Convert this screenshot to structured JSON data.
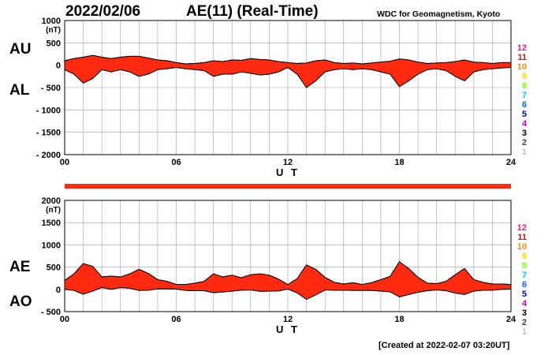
{
  "header": {
    "date": "2022/02/06",
    "title": "AE(11) (Real-Time)",
    "source": "WDC for Geomagnetism, Kyoto"
  },
  "footer": {
    "created": "[Created at 2022-02-07 03:20UT]"
  },
  "colors": {
    "fill": "#ff2a10",
    "outline": "#000000",
    "grid": "#a0a0a0",
    "station_levels": [
      "#ff1493",
      "#ee0000",
      "#ff8c00",
      "#ffd700",
      "#7fff00",
      "#00c8ff",
      "#0064ff",
      "#0000c8",
      "#c800c8",
      "#000000",
      "#404040",
      "#c0c0c0"
    ]
  },
  "station_levels": [
    "12",
    "11",
    "10",
    "9",
    "8",
    "7",
    "6",
    "5",
    "4",
    "3",
    "2",
    "1"
  ],
  "chart_data": [
    {
      "type": "area",
      "name": "AU/AL",
      "series_labels": [
        "AU",
        "AL"
      ],
      "ylabel": "(nT)",
      "xlabel": "U T",
      "xlim": [
        0,
        24
      ],
      "ylim": [
        -2000,
        1000
      ],
      "yticks": [
        1000,
        500,
        0,
        -500,
        -1000,
        -1500,
        -2000
      ],
      "ytick_labels": [
        "1000",
        "500",
        "0",
        "- 500",
        "- 1000",
        "- 1500",
        "- 2000"
      ],
      "xticks": [
        0,
        6,
        12,
        18,
        24
      ],
      "xtick_labels": [
        "00",
        "06",
        "12",
        "18",
        "24"
      ],
      "grid": true,
      "x": [
        0,
        0.5,
        1,
        1.5,
        2,
        2.5,
        3,
        3.5,
        4,
        4.5,
        5,
        5.5,
        6,
        6.5,
        7,
        7.5,
        8,
        8.5,
        9,
        9.5,
        10,
        10.5,
        11,
        11.5,
        12,
        12.5,
        13,
        13.5,
        14,
        14.5,
        15,
        15.5,
        16,
        16.5,
        17,
        17.5,
        18,
        18.5,
        19,
        19.5,
        20,
        20.5,
        21,
        21.5,
        22,
        22.5,
        23,
        23.5,
        24
      ],
      "series": [
        {
          "name": "AU",
          "values": [
            100,
            150,
            180,
            220,
            180,
            150,
            180,
            200,
            200,
            160,
            120,
            100,
            60,
            30,
            40,
            60,
            100,
            80,
            120,
            110,
            150,
            130,
            120,
            80,
            60,
            40,
            50,
            100,
            120,
            60,
            40,
            50,
            30,
            50,
            70,
            90,
            140,
            120,
            70,
            40,
            50,
            60,
            80,
            120,
            70,
            60,
            40,
            60,
            60
          ]
        },
        {
          "name": "AL",
          "values": [
            -100,
            -200,
            -400,
            -300,
            -100,
            -150,
            -100,
            -150,
            -250,
            -200,
            -100,
            -80,
            -50,
            -80,
            -100,
            -120,
            -250,
            -200,
            -200,
            -150,
            -180,
            -220,
            -200,
            -150,
            -50,
            -200,
            -500,
            -350,
            -150,
            -100,
            -80,
            -100,
            -80,
            -100,
            -150,
            -200,
            -480,
            -350,
            -200,
            -100,
            -80,
            -120,
            -250,
            -350,
            -150,
            -100,
            -80,
            -60,
            -50
          ]
        }
      ]
    },
    {
      "type": "area",
      "name": "AE/AO",
      "series_labels": [
        "AE",
        "AO"
      ],
      "ylabel": "(nT)",
      "xlabel": "U T",
      "xlim": [
        0,
        24
      ],
      "ylim": [
        -500,
        2000
      ],
      "yticks": [
        2000,
        1500,
        1000,
        500,
        0,
        -500
      ],
      "ytick_labels": [
        "2000",
        "1500",
        "1000",
        "500",
        "0",
        "- 500"
      ],
      "xticks": [
        0,
        6,
        12,
        18,
        24
      ],
      "xtick_labels": [
        "00",
        "06",
        "12",
        "18",
        "24"
      ],
      "grid": true,
      "x": [
        0,
        0.5,
        1,
        1.5,
        2,
        2.5,
        3,
        3.5,
        4,
        4.5,
        5,
        5.5,
        6,
        6.5,
        7,
        7.5,
        8,
        8.5,
        9,
        9.5,
        10,
        10.5,
        11,
        11.5,
        12,
        12.5,
        13,
        13.5,
        14,
        14.5,
        15,
        15.5,
        16,
        16.5,
        17,
        17.5,
        18,
        18.5,
        19,
        19.5,
        20,
        20.5,
        21,
        21.5,
        22,
        22.5,
        23,
        23.5,
        24
      ],
      "series": [
        {
          "name": "AE",
          "values": [
            200,
            350,
            580,
            520,
            280,
            300,
            280,
            350,
            450,
            360,
            220,
            180,
            110,
            110,
            140,
            180,
            350,
            280,
            320,
            260,
            330,
            350,
            320,
            230,
            110,
            240,
            550,
            450,
            270,
            160,
            120,
            150,
            110,
            150,
            220,
            290,
            620,
            470,
            270,
            140,
            130,
            180,
            330,
            470,
            220,
            160,
            120,
            120,
            110
          ]
        },
        {
          "name": "AO",
          "values": [
            0,
            -25,
            -110,
            -40,
            40,
            0,
            40,
            25,
            -25,
            -20,
            10,
            10,
            5,
            -25,
            -30,
            -30,
            -75,
            -60,
            -40,
            -20,
            -15,
            -45,
            -40,
            -35,
            5,
            -80,
            -225,
            -125,
            -15,
            -20,
            -20,
            -25,
            -25,
            -25,
            -40,
            -55,
            -170,
            -115,
            -65,
            -30,
            -15,
            -30,
            -85,
            -115,
            -40,
            -20,
            -20,
            0,
            5
          ]
        }
      ]
    }
  ]
}
